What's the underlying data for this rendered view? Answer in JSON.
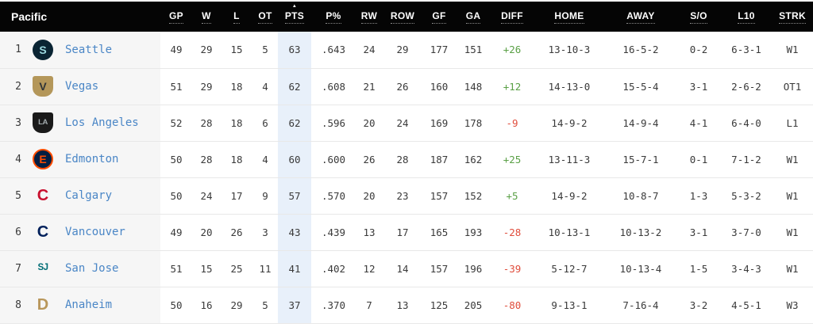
{
  "colors": {
    "header_bg": "#050505",
    "team_band": "#f6f6f6",
    "pts_band": "#e8f0fa",
    "link": "#4a86c6",
    "positive": "#5aa046",
    "negative": "#e04d3c"
  },
  "table": {
    "division": "Pacific",
    "sort_indicator": "▲",
    "sorted_column": "PTS",
    "columns": [
      {
        "id": "gp",
        "label": "GP"
      },
      {
        "id": "w",
        "label": "W"
      },
      {
        "id": "l",
        "label": "L"
      },
      {
        "id": "ot",
        "label": "OT"
      },
      {
        "id": "pts",
        "label": "PTS",
        "sorted": true
      },
      {
        "id": "pctg",
        "label": "P%"
      },
      {
        "id": "rw",
        "label": "RW"
      },
      {
        "id": "row",
        "label": "ROW"
      },
      {
        "id": "gf",
        "label": "GF"
      },
      {
        "id": "ga",
        "label": "GA"
      },
      {
        "id": "diff",
        "label": "DIFF"
      },
      {
        "id": "home",
        "label": "HOME"
      },
      {
        "id": "away",
        "label": "AWAY"
      },
      {
        "id": "so",
        "label": "S/O"
      },
      {
        "id": "l10",
        "label": "L10"
      },
      {
        "id": "strk",
        "label": "STRK"
      }
    ],
    "teams": [
      {
        "rank": "1",
        "name": "Seattle",
        "logo": {
          "letter": "S",
          "shape": "circle",
          "bg": "#0a2433",
          "fg": "#9cd9e0"
        },
        "stats": {
          "gp": "49",
          "w": "29",
          "l": "15",
          "ot": "5",
          "pts": "63",
          "pctg": ".643",
          "rw": "24",
          "row": "29",
          "gf": "177",
          "ga": "151",
          "diff": "+26",
          "home": "13-10-3",
          "away": "16-5-2",
          "so": "0-2",
          "l10": "6-3-1",
          "strk": "W1"
        }
      },
      {
        "rank": "2",
        "name": "Vegas",
        "logo": {
          "letter": "V",
          "shape": "shield",
          "bg": "#b4975a",
          "fg": "#2f3437"
        },
        "stats": {
          "gp": "51",
          "w": "29",
          "l": "18",
          "ot": "4",
          "pts": "62",
          "pctg": ".608",
          "rw": "21",
          "row": "26",
          "gf": "160",
          "ga": "148",
          "diff": "+12",
          "home": "14-13-0",
          "away": "15-5-4",
          "so": "3-1",
          "l10": "2-6-2",
          "strk": "OT1"
        }
      },
      {
        "rank": "3",
        "name": "Los Angeles",
        "logo": {
          "letter": "LA",
          "shape": "shield",
          "bg": "#1a1a1a",
          "fg": "#a2aaad"
        },
        "stats": {
          "gp": "52",
          "w": "28",
          "l": "18",
          "ot": "6",
          "pts": "62",
          "pctg": ".596",
          "rw": "20",
          "row": "24",
          "gf": "169",
          "ga": "178",
          "diff": "-9",
          "home": "14-9-2",
          "away": "14-9-4",
          "so": "4-1",
          "l10": "6-4-0",
          "strk": "L1"
        }
      },
      {
        "rank": "4",
        "name": "Edmonton",
        "logo": {
          "letter": "E",
          "shape": "circle",
          "bg": "#041e42",
          "fg": "#ff4c00",
          "border": "#ff4c00"
        },
        "stats": {
          "gp": "50",
          "w": "28",
          "l": "18",
          "ot": "4",
          "pts": "60",
          "pctg": ".600",
          "rw": "26",
          "row": "28",
          "gf": "187",
          "ga": "162",
          "diff": "+25",
          "home": "13-11-3",
          "away": "15-7-1",
          "so": "0-1",
          "l10": "7-1-2",
          "strk": "W1"
        }
      },
      {
        "rank": "5",
        "name": "Calgary",
        "logo": {
          "letter": "C",
          "shape": "letter",
          "fg": "#c8102e"
        },
        "stats": {
          "gp": "50",
          "w": "24",
          "l": "17",
          "ot": "9",
          "pts": "57",
          "pctg": ".570",
          "rw": "20",
          "row": "23",
          "gf": "157",
          "ga": "152",
          "diff": "+5",
          "home": "14-9-2",
          "away": "10-8-7",
          "so": "1-3",
          "l10": "5-3-2",
          "strk": "W1"
        }
      },
      {
        "rank": "6",
        "name": "Vancouver",
        "logo": {
          "letter": "C",
          "shape": "letter",
          "fg": "#00205b"
        },
        "stats": {
          "gp": "49",
          "w": "20",
          "l": "26",
          "ot": "3",
          "pts": "43",
          "pctg": ".439",
          "rw": "13",
          "row": "17",
          "gf": "165",
          "ga": "193",
          "diff": "-28",
          "home": "10-13-1",
          "away": "10-13-2",
          "so": "3-1",
          "l10": "3-7-0",
          "strk": "W1"
        }
      },
      {
        "rank": "7",
        "name": "San Jose",
        "logo": {
          "letter": "SJ",
          "shape": "letter",
          "fg": "#006d75"
        },
        "stats": {
          "gp": "51",
          "w": "15",
          "l": "25",
          "ot": "11",
          "pts": "41",
          "pctg": ".402",
          "rw": "12",
          "row": "14",
          "gf": "157",
          "ga": "196",
          "diff": "-39",
          "home": "5-12-7",
          "away": "10-13-4",
          "so": "1-5",
          "l10": "3-4-3",
          "strk": "W1"
        }
      },
      {
        "rank": "8",
        "name": "Anaheim",
        "logo": {
          "letter": "D",
          "shape": "letter",
          "fg": "#b9975b"
        },
        "stats": {
          "gp": "50",
          "w": "16",
          "l": "29",
          "ot": "5",
          "pts": "37",
          "pctg": ".370",
          "rw": "7",
          "row": "13",
          "gf": "125",
          "ga": "205",
          "diff": "-80",
          "home": "9-13-1",
          "away": "7-16-4",
          "so": "3-2",
          "l10": "4-5-1",
          "strk": "W3"
        }
      }
    ]
  }
}
